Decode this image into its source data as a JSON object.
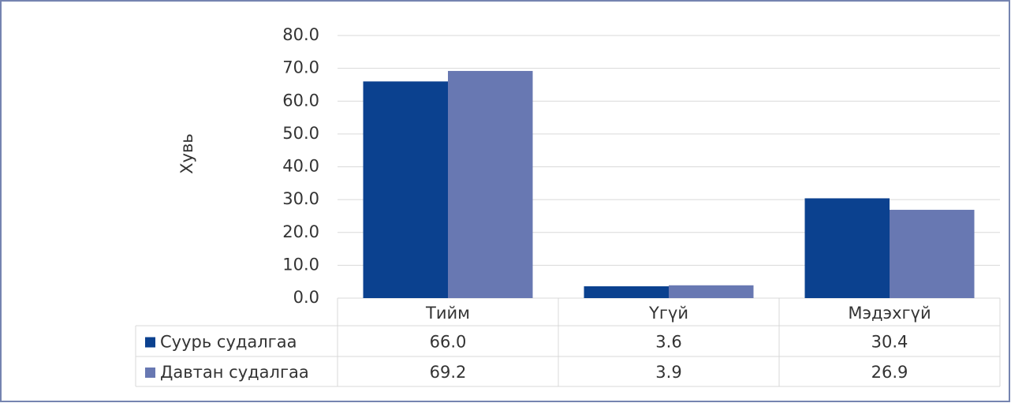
{
  "chart_data": {
    "type": "bar",
    "ylabel": "Хувь",
    "categories": [
      "Тийм",
      "Үгүй",
      "Мэдэхгүй"
    ],
    "series": [
      {
        "name": "Суурь судалгаа",
        "color": "#0b418f",
        "values": [
          66.0,
          3.6,
          30.4
        ],
        "value_labels": [
          "66.0",
          "3.6",
          "30.4"
        ]
      },
      {
        "name": "Давтан судалгаа",
        "color": "#6878b2",
        "values": [
          69.2,
          3.9,
          26.9
        ],
        "value_labels": [
          "69.2",
          "3.9",
          "26.9"
        ]
      }
    ],
    "ylim": [
      0,
      80
    ],
    "yticks": [
      {
        "value": 0,
        "label": "0.0"
      },
      {
        "value": 10,
        "label": "10.0"
      },
      {
        "value": 20,
        "label": "20.0"
      },
      {
        "value": 30,
        "label": "30.0"
      },
      {
        "value": 40,
        "label": "40.0"
      },
      {
        "value": 50,
        "label": "50.0"
      },
      {
        "value": 60,
        "label": "60.0"
      },
      {
        "value": 70,
        "label": "70.0"
      },
      {
        "value": 80,
        "label": "80.0"
      }
    ],
    "grid": true
  }
}
